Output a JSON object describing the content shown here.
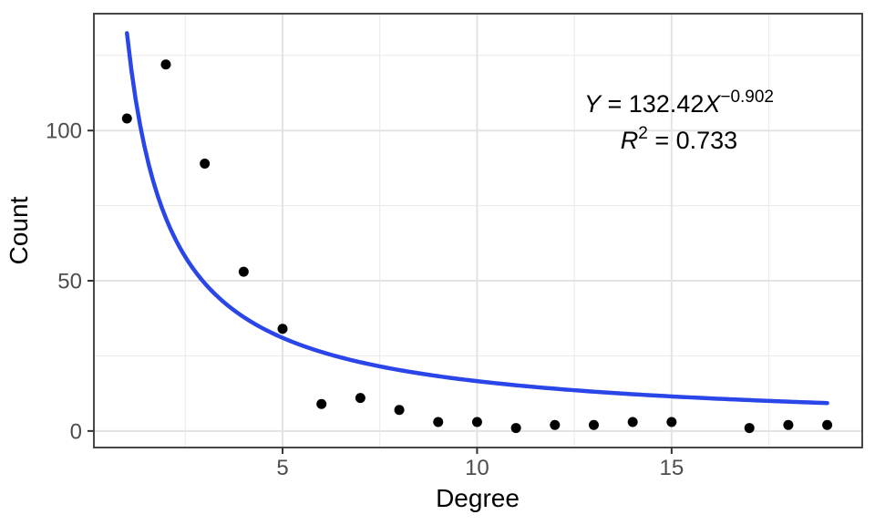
{
  "chart_data": {
    "type": "scatter",
    "title": "",
    "xlabel": "Degree",
    "ylabel": "Count",
    "points": [
      {
        "x": 1,
        "y": 104
      },
      {
        "x": 2,
        "y": 122
      },
      {
        "x": 3,
        "y": 89
      },
      {
        "x": 4,
        "y": 53
      },
      {
        "x": 5,
        "y": 34
      },
      {
        "x": 6,
        "y": 9
      },
      {
        "x": 7,
        "y": 11
      },
      {
        "x": 8,
        "y": 7
      },
      {
        "x": 9,
        "y": 3
      },
      {
        "x": 10,
        "y": 3
      },
      {
        "x": 11,
        "y": 1
      },
      {
        "x": 12,
        "y": 2
      },
      {
        "x": 13,
        "y": 2
      },
      {
        "x": 14,
        "y": 3
      },
      {
        "x": 15,
        "y": 3
      },
      {
        "x": 17,
        "y": 1
      },
      {
        "x": 18,
        "y": 2
      },
      {
        "x": 19,
        "y": 2
      }
    ],
    "xlim": [
      0.15,
      19.9
    ],
    "ylim": [
      -5.5,
      138.9
    ],
    "x_ticks": [
      {
        "value": 5,
        "label": "5"
      },
      {
        "value": 10,
        "label": "10"
      },
      {
        "value": 15,
        "label": "15"
      }
    ],
    "y_ticks": [
      {
        "value": 0,
        "label": "0"
      },
      {
        "value": 50,
        "label": "50"
      },
      {
        "value": 100,
        "label": "100"
      }
    ],
    "x_minor": [
      2.5,
      7.5,
      12.5,
      17.5
    ],
    "y_minor": [
      25,
      75,
      125
    ],
    "grid": true,
    "legend": false,
    "trendline": {
      "type": "power",
      "a": 132.42,
      "b": -0.902,
      "x_start": 1.0,
      "x_end": 19.0
    },
    "annotation": {
      "eq_y": "Y",
      "eq_mid": " = 132.42",
      "eq_x": "X",
      "eq_exp": "−0.902",
      "r2_r": "R",
      "r2_sup": "2",
      "r2_rest": " = 0.733"
    },
    "colors": {
      "trend_line": "#2b46e8",
      "point": "#000000",
      "grid_major": "#e3e3e3",
      "grid_minor": "#ececec",
      "panel_border": "#333333",
      "tick_mark": "#333333",
      "tick_label": "#4d4d4d",
      "axis_title": "#000000",
      "annotation": "#000000",
      "panel_bg": "#ffffff"
    }
  }
}
